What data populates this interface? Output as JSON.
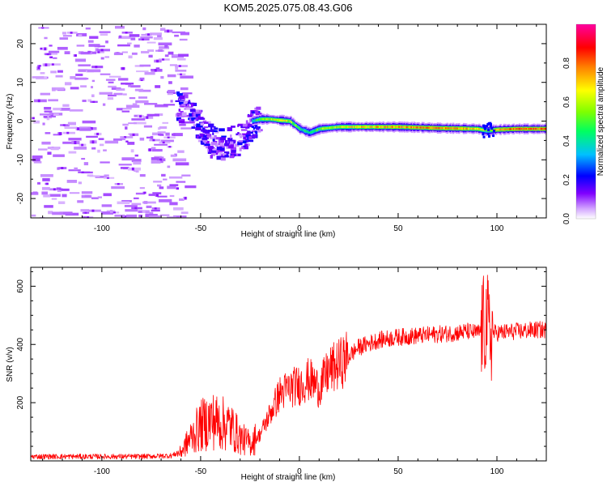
{
  "title": "KOM5.2025.075.08.43.G06",
  "colorbar": {
    "label": "Normalized spectral amplitude",
    "range": [
      0,
      1
    ],
    "ticks": [
      "0.0",
      "0.2",
      "0.4",
      "0.6",
      "0.8"
    ],
    "tick_values": [
      0.0,
      0.2,
      0.4,
      0.6,
      0.8
    ],
    "colors": [
      "#ffffff",
      "#d4a8ff",
      "#8000ff",
      "#0000ff",
      "#00c0ff",
      "#00ff60",
      "#80ff00",
      "#ffff00",
      "#ff8000",
      "#ff0000",
      "#ff00a0"
    ]
  },
  "chart_data": [
    {
      "type": "heatmap",
      "xlabel": "Height of straight line (km)",
      "ylabel": "Frequency (Hz)",
      "xlim": [
        -136,
        125
      ],
      "ylim": [
        -25,
        25
      ],
      "xticks": [
        -100,
        -50,
        0,
        50,
        100
      ],
      "xtick_labels": [
        "-100",
        "-50",
        "0",
        "50",
        "100"
      ],
      "yticks": [
        -20,
        -10,
        0,
        10,
        20
      ],
      "ytick_labels": [
        "-20",
        "-10",
        "0",
        "10",
        "20"
      ],
      "grid": false,
      "ridge": {
        "x": [
          -62,
          -58,
          -55,
          -52,
          -48,
          -45,
          -40,
          -35,
          -30,
          -27,
          -24,
          -20,
          -15,
          -10,
          -5,
          0,
          5,
          10,
          20,
          30,
          50,
          70,
          90,
          95,
          100,
          110,
          125
        ],
        "freq": [
          4,
          3,
          1,
          -1,
          -3,
          -5,
          -6,
          -5,
          -4,
          -2,
          0,
          0.5,
          0.5,
          0.2,
          0,
          -2,
          -3,
          -2,
          -1.5,
          -1.5,
          -1.5,
          -1.8,
          -2,
          -2.5,
          -2.2,
          -2,
          -2
        ],
        "amplitude": [
          0.15,
          0.2,
          0.18,
          0.2,
          0.25,
          0.25,
          0.2,
          0.22,
          0.25,
          0.3,
          0.4,
          0.55,
          0.6,
          0.65,
          0.6,
          0.45,
          0.4,
          0.55,
          0.6,
          0.7,
          0.75,
          0.8,
          0.7,
          0.5,
          0.75,
          0.8,
          0.8
        ]
      }
    },
    {
      "type": "line",
      "xlabel": "Height of straight line (km)",
      "ylabel": "SNR (v/v)",
      "xlim": [
        -136,
        125
      ],
      "ylim": [
        0,
        665
      ],
      "xticks": [
        -100,
        -50,
        0,
        50,
        100
      ],
      "xtick_labels": [
        "-100",
        "-50",
        "0",
        "50",
        "100"
      ],
      "yticks": [
        200,
        400,
        600
      ],
      "ytick_labels": [
        "200",
        "400",
        "600"
      ],
      "grid": false,
      "color": "#ff0000",
      "x": [
        -136,
        -120,
        -100,
        -80,
        -65,
        -60,
        -55,
        -50,
        -45,
        -40,
        -35,
        -30,
        -25,
        -20,
        -15,
        -10,
        -5,
        0,
        5,
        10,
        15,
        20,
        25,
        30,
        40,
        50,
        60,
        70,
        80,
        85,
        90,
        92,
        94,
        95,
        96,
        98,
        100,
        110,
        120,
        125
      ],
      "y": [
        15,
        15,
        15,
        15,
        18,
        30,
        80,
        120,
        140,
        130,
        120,
        80,
        60,
        90,
        160,
        230,
        250,
        260,
        280,
        250,
        310,
        330,
        360,
        390,
        415,
        425,
        430,
        435,
        440,
        445,
        440,
        445,
        470,
        480,
        430,
        440,
        440,
        445,
        450,
        450
      ]
    }
  ]
}
